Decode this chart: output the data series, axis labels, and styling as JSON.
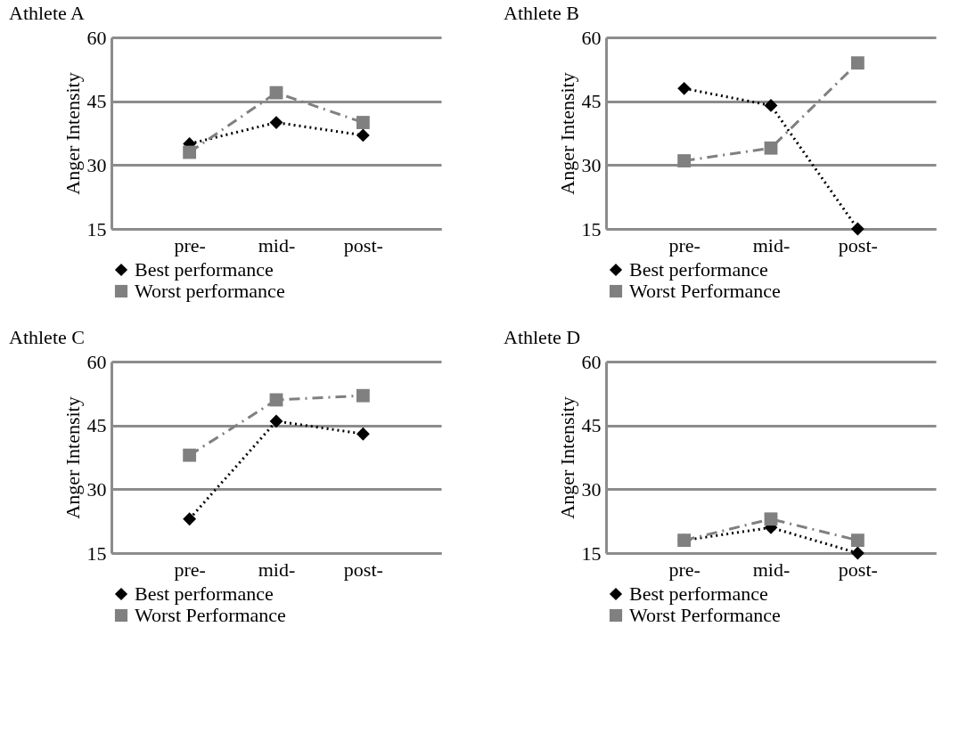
{
  "chart_data": [
    {
      "type": "line",
      "title": "Athlete A",
      "ylabel": "Anger Intensity",
      "categories": [
        "pre-",
        "mid-",
        "post-"
      ],
      "ylim": [
        15,
        60
      ],
      "yticks": [
        15,
        30,
        45,
        60
      ],
      "grid": "y",
      "legend": "bottom",
      "series": [
        {
          "name": "Best performance",
          "color": "#000000",
          "values": [
            35,
            40,
            37
          ],
          "marker": "diamond",
          "line_style": "dotted"
        },
        {
          "name": "Worst performance",
          "color": "#808080",
          "values": [
            33,
            47,
            40
          ],
          "marker": "square",
          "line_style": "dashed"
        }
      ]
    },
    {
      "type": "line",
      "title": "Athlete B",
      "ylabel": "Anger Intensity",
      "categories": [
        "pre-",
        "mid-",
        "post-"
      ],
      "ylim": [
        15,
        60
      ],
      "yticks": [
        15,
        30,
        45,
        60
      ],
      "grid": "y",
      "legend": "bottom",
      "series": [
        {
          "name": "Best performance",
          "color": "#000000",
          "values": [
            48,
            44,
            15
          ],
          "marker": "diamond",
          "line_style": "dotted"
        },
        {
          "name": "Worst Performance",
          "color": "#808080",
          "values": [
            31,
            34,
            54
          ],
          "marker": "square",
          "line_style": "dashed"
        }
      ]
    },
    {
      "type": "line",
      "title": "Athlete C",
      "ylabel": "Anger Intensity",
      "categories": [
        "pre-",
        "mid-",
        "post-"
      ],
      "ylim": [
        15,
        60
      ],
      "yticks": [
        15,
        30,
        45,
        60
      ],
      "grid": "y",
      "legend": "bottom",
      "series": [
        {
          "name": "Best performance",
          "color": "#000000",
          "values": [
            23,
            46,
            43
          ],
          "marker": "diamond",
          "line_style": "dotted"
        },
        {
          "name": "Worst Performance",
          "color": "#808080",
          "values": [
            38,
            51,
            52
          ],
          "marker": "square",
          "line_style": "dashed"
        }
      ]
    },
    {
      "type": "line",
      "title": "Athlete D",
      "ylabel": "Anger Intensity",
      "categories": [
        "pre-",
        "mid-",
        "post-"
      ],
      "ylim": [
        15,
        60
      ],
      "yticks": [
        15,
        30,
        45,
        60
      ],
      "grid": "y",
      "legend": "bottom",
      "series": [
        {
          "name": "Best performance",
          "color": "#000000",
          "values": [
            18,
            21,
            15
          ],
          "marker": "diamond",
          "line_style": "dotted"
        },
        {
          "name": "Worst Performance",
          "color": "#808080",
          "values": [
            18,
            23,
            18
          ],
          "marker": "square",
          "line_style": "dashed"
        }
      ]
    }
  ]
}
